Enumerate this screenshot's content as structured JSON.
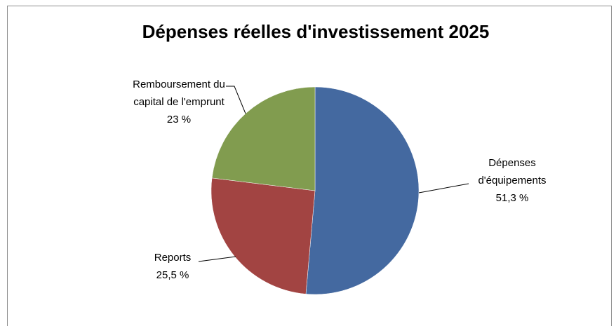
{
  "chart_data": {
    "type": "pie",
    "title": "Dépenses réelles d'investissement 2025",
    "categories": [
      "Dépenses d'équipements",
      "Reports",
      "Remboursement du capital de l'emprunt"
    ],
    "values": [
      51.3,
      25.5,
      23
    ],
    "value_labels": [
      "51,3 %",
      "25,5 %",
      "23 %"
    ],
    "colors": [
      "#4469a0",
      "#a24442",
      "#819c4f"
    ]
  }
}
